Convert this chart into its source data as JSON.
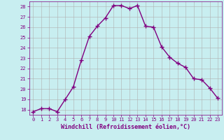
{
  "x": [
    0,
    1,
    2,
    3,
    4,
    5,
    6,
    7,
    8,
    9,
    10,
    11,
    12,
    13,
    14,
    15,
    16,
    17,
    18,
    19,
    20,
    21,
    22,
    23
  ],
  "y": [
    17.8,
    18.1,
    18.1,
    17.8,
    19.0,
    20.2,
    22.8,
    25.1,
    26.1,
    26.9,
    28.1,
    28.1,
    27.8,
    28.1,
    26.1,
    26.0,
    24.1,
    23.1,
    22.5,
    22.1,
    21.0,
    20.9,
    20.1,
    19.1
  ],
  "line_color": "#800080",
  "marker": "+",
  "marker_size": 4,
  "bg_color": "#c8eef0",
  "grid_color": "#b0b0b0",
  "xlabel": "Windchill (Refroidissement éolien,°C)",
  "ylim": [
    17.5,
    28.5
  ],
  "xlim": [
    -0.5,
    23.5
  ],
  "yticks": [
    18,
    19,
    20,
    21,
    22,
    23,
    24,
    25,
    26,
    27,
    28
  ],
  "xticks": [
    0,
    1,
    2,
    3,
    4,
    5,
    6,
    7,
    8,
    9,
    10,
    11,
    12,
    13,
    14,
    15,
    16,
    17,
    18,
    19,
    20,
    21,
    22,
    23
  ],
  "tick_color": "#800080",
  "tick_fontsize": 5,
  "xlabel_fontsize": 6,
  "line_width": 1.0
}
